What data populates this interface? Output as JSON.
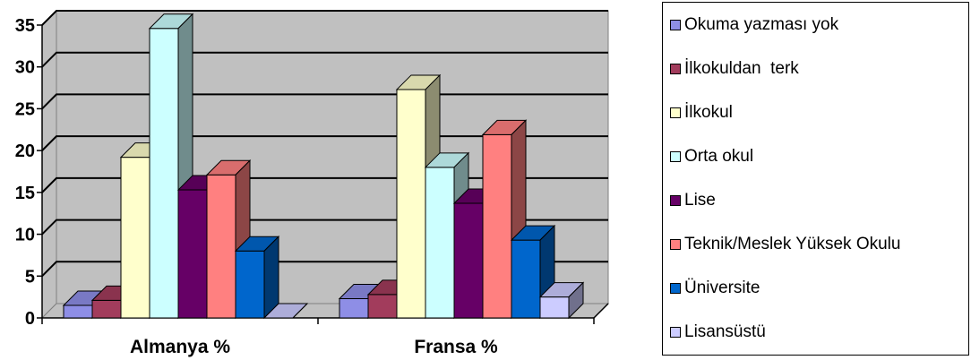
{
  "chart_data": {
    "type": "bar",
    "three_d": true,
    "categories": [
      "Almanya %",
      "Fransa %"
    ],
    "series": [
      {
        "name": "Okuma yazması yok",
        "values": [
          1.5,
          2.3
        ],
        "color": "#8e8ee6"
      },
      {
        "name": "İlkokuldan  terk",
        "values": [
          2.1,
          2.8
        ],
        "color": "#a23c5c"
      },
      {
        "name": "İlkokul",
        "values": [
          19.2,
          27.3
        ],
        "color": "#ffffcc"
      },
      {
        "name": "Orta okul",
        "values": [
          34.6,
          18.0
        ],
        "color": "#ccffff"
      },
      {
        "name": "Lise",
        "values": [
          15.3,
          13.7
        ],
        "color": "#660066"
      },
      {
        "name": "Teknik/Meslek Yüksek Okulu",
        "values": [
          17.1,
          21.9
        ],
        "color": "#ff8080"
      },
      {
        "name": "Üniversite",
        "values": [
          8.0,
          9.3
        ],
        "color": "#0066cc"
      },
      {
        "name": "Lisansüstü",
        "values": [
          0.0,
          2.5
        ],
        "color": "#ccccff"
      }
    ],
    "yticks": [
      "0",
      "5",
      "10",
      "15",
      "20",
      "25",
      "30",
      "35"
    ],
    "ylim": [
      0,
      35
    ],
    "grid": true,
    "legend_position": "right",
    "wall_color": "#c0c0c0"
  }
}
